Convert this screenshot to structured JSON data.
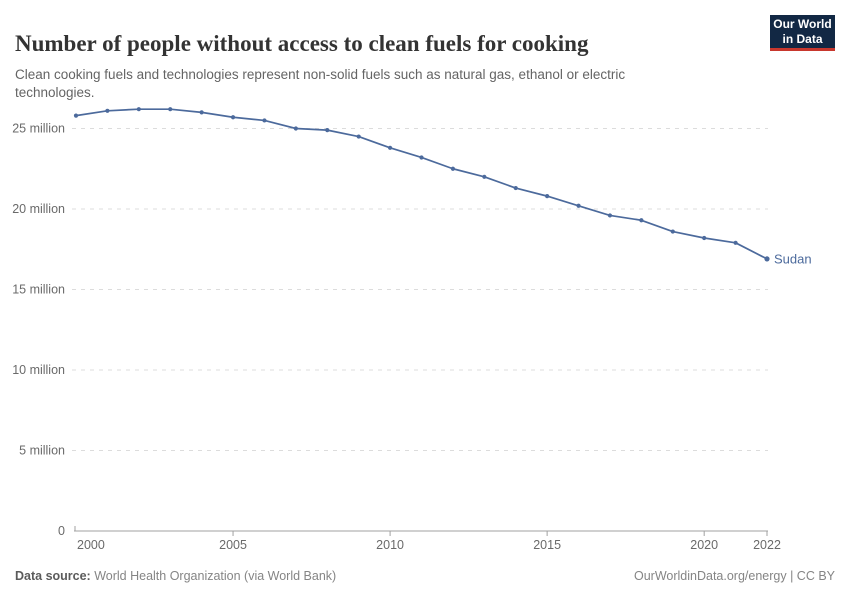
{
  "header": {
    "title": "Number of people without access to clean fuels for cooking",
    "subtitle": "Clean cooking fuels and technologies represent non-solid fuels such as natural gas, ethanol or electric technologies.",
    "logo": {
      "line1": "Our World",
      "line2": "in Data",
      "bg_color": "#122844",
      "accent_color": "#c8372d"
    }
  },
  "chart_data": {
    "type": "line",
    "title": "Number of people without access to clean fuels for cooking",
    "xlabel": "",
    "ylabel": "",
    "x": [
      2000,
      2001,
      2002,
      2003,
      2004,
      2005,
      2006,
      2007,
      2008,
      2009,
      2010,
      2011,
      2012,
      2013,
      2014,
      2015,
      2016,
      2017,
      2018,
      2019,
      2020,
      2021,
      2022
    ],
    "series": [
      {
        "name": "Sudan",
        "color": "#4c6a9c",
        "values_millions": [
          25.8,
          26.1,
          26.2,
          26.2,
          26.0,
          25.7,
          25.5,
          25.0,
          24.9,
          24.5,
          23.8,
          23.2,
          22.5,
          22.0,
          21.3,
          20.8,
          20.2,
          19.6,
          19.3,
          18.6,
          18.2,
          17.9,
          16.9
        ]
      }
    ],
    "y_ticks": [
      {
        "value": 0,
        "label": "0"
      },
      {
        "value": 5,
        "label": "5 million"
      },
      {
        "value": 10,
        "label": "10 million"
      },
      {
        "value": 15,
        "label": "15 million"
      },
      {
        "value": 20,
        "label": "20 million"
      },
      {
        "value": 25,
        "label": "25 million"
      }
    ],
    "x_ticks": [
      {
        "value": 2000,
        "label": "2000"
      },
      {
        "value": 2005,
        "label": "2005"
      },
      {
        "value": 2010,
        "label": "2010"
      },
      {
        "value": 2015,
        "label": "2015"
      },
      {
        "value": 2020,
        "label": "2020"
      },
      {
        "value": 2022,
        "label": "2022"
      }
    ],
    "xlim": [
      2000,
      2022
    ],
    "ylim_millions": [
      0,
      27.6
    ],
    "grid": "horizontal-dashed",
    "legend_position": "end-of-line",
    "colors": {
      "line": "#4c6a9c",
      "gridline": "#dcdcdc",
      "axis": "#a1a1a1",
      "tick_label": "#6a6a6a"
    }
  },
  "footer": {
    "source_label": "Data source:",
    "source_text": " World Health Organization (via World Bank)",
    "link_text": "OurWorldinData.org/energy | CC BY"
  }
}
